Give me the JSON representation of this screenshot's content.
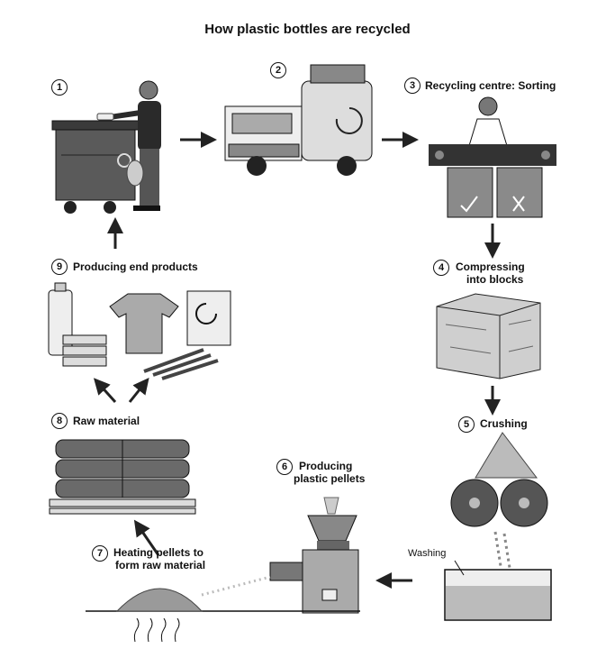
{
  "title": "How plastic bottles are recycled",
  "steps": [
    {
      "number": "1",
      "label": ""
    },
    {
      "number": "2",
      "label": ""
    },
    {
      "number": "3",
      "label": "Recycling centre: Sorting"
    },
    {
      "number": "4",
      "label_line1": "Compressing",
      "label_line2": "into blocks"
    },
    {
      "number": "5",
      "label": "Crushing"
    },
    {
      "number": "6",
      "label_line1": "Producing",
      "label_line2": "plastic pellets"
    },
    {
      "number": "7",
      "label_line1": "Heating pellets to",
      "label_line2": "form raw material"
    },
    {
      "number": "8",
      "label": "Raw material"
    },
    {
      "number": "9",
      "label": "Producing end products"
    }
  ],
  "washing_label": "Washing",
  "colors": {
    "ink": "#111111",
    "dark_gray": "#4a4a4a",
    "mid_gray": "#8a8a8a",
    "light_gray": "#c8c8c8",
    "pale_gray": "#e6e6e6"
  }
}
